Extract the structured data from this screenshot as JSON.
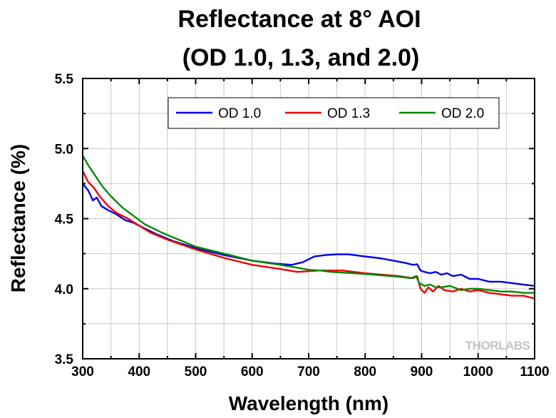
{
  "chart_data": {
    "type": "line",
    "title_line1": "Reflectance at  8° AOI",
    "title_line2": "(OD 1.0, 1.3, and 2.0)",
    "xlabel": "Wavelength (nm)",
    "ylabel": "Reflectance (%)",
    "xlim": [
      300,
      1100
    ],
    "ylim": [
      3.5,
      5.5
    ],
    "x_ticks": [
      300,
      400,
      500,
      600,
      700,
      800,
      900,
      1000,
      1100
    ],
    "y_ticks": [
      "3.5",
      "4.0",
      "4.5",
      "5.0",
      "5.5"
    ],
    "grid": true,
    "legend_position": "top-right",
    "watermark": "THORLABS",
    "series": [
      {
        "name": "OD 1.0",
        "color": "#0000ee",
        "points": [
          [
            300,
            4.75
          ],
          [
            310,
            4.7
          ],
          [
            318,
            4.63
          ],
          [
            325,
            4.65
          ],
          [
            333,
            4.59
          ],
          [
            345,
            4.56
          ],
          [
            360,
            4.53
          ],
          [
            375,
            4.49
          ],
          [
            390,
            4.47
          ],
          [
            410,
            4.43
          ],
          [
            430,
            4.39
          ],
          [
            460,
            4.34
          ],
          [
            500,
            4.29
          ],
          [
            550,
            4.24
          ],
          [
            600,
            4.2
          ],
          [
            640,
            4.18
          ],
          [
            670,
            4.17
          ],
          [
            690,
            4.19
          ],
          [
            710,
            4.23
          ],
          [
            730,
            4.24
          ],
          [
            750,
            4.245
          ],
          [
            770,
            4.245
          ],
          [
            790,
            4.235
          ],
          [
            810,
            4.225
          ],
          [
            830,
            4.215
          ],
          [
            850,
            4.2
          ],
          [
            870,
            4.185
          ],
          [
            885,
            4.17
          ],
          [
            892,
            4.175
          ],
          [
            898,
            4.13
          ],
          [
            905,
            4.12
          ],
          [
            915,
            4.11
          ],
          [
            925,
            4.12
          ],
          [
            935,
            4.1
          ],
          [
            945,
            4.11
          ],
          [
            955,
            4.09
          ],
          [
            970,
            4.1
          ],
          [
            985,
            4.07
          ],
          [
            1000,
            4.07
          ],
          [
            1020,
            4.05
          ],
          [
            1040,
            4.05
          ],
          [
            1060,
            4.04
          ],
          [
            1080,
            4.03
          ],
          [
            1100,
            4.02
          ]
        ]
      },
      {
        "name": "OD 1.3",
        "color": "#ee0000",
        "points": [
          [
            300,
            4.84
          ],
          [
            310,
            4.76
          ],
          [
            320,
            4.72
          ],
          [
            330,
            4.66
          ],
          [
            345,
            4.59
          ],
          [
            360,
            4.54
          ],
          [
            380,
            4.5
          ],
          [
            400,
            4.45
          ],
          [
            420,
            4.4
          ],
          [
            450,
            4.35
          ],
          [
            500,
            4.28
          ],
          [
            550,
            4.22
          ],
          [
            600,
            4.17
          ],
          [
            650,
            4.14
          ],
          [
            680,
            4.12
          ],
          [
            700,
            4.125
          ],
          [
            720,
            4.13
          ],
          [
            740,
            4.13
          ],
          [
            760,
            4.13
          ],
          [
            780,
            4.12
          ],
          [
            800,
            4.11
          ],
          [
            830,
            4.1
          ],
          [
            860,
            4.09
          ],
          [
            885,
            4.075
          ],
          [
            892,
            4.09
          ],
          [
            898,
            4.0
          ],
          [
            905,
            3.97
          ],
          [
            912,
            4.01
          ],
          [
            920,
            3.98
          ],
          [
            930,
            4.02
          ],
          [
            940,
            3.99
          ],
          [
            955,
            3.98
          ],
          [
            970,
            4.0
          ],
          [
            985,
            3.98
          ],
          [
            1000,
            3.99
          ],
          [
            1020,
            3.97
          ],
          [
            1040,
            3.96
          ],
          [
            1060,
            3.95
          ],
          [
            1080,
            3.95
          ],
          [
            1100,
            3.93
          ]
        ]
      },
      {
        "name": "OD 2.0",
        "color": "#008800",
        "points": [
          [
            300,
            4.95
          ],
          [
            310,
            4.88
          ],
          [
            320,
            4.82
          ],
          [
            335,
            4.73
          ],
          [
            350,
            4.66
          ],
          [
            370,
            4.58
          ],
          [
            390,
            4.52
          ],
          [
            410,
            4.46
          ],
          [
            440,
            4.4
          ],
          [
            470,
            4.35
          ],
          [
            500,
            4.3
          ],
          [
            550,
            4.25
          ],
          [
            600,
            4.2
          ],
          [
            650,
            4.17
          ],
          [
            680,
            4.15
          ],
          [
            700,
            4.135
          ],
          [
            720,
            4.13
          ],
          [
            740,
            4.12
          ],
          [
            760,
            4.115
          ],
          [
            780,
            4.11
          ],
          [
            800,
            4.105
          ],
          [
            830,
            4.095
          ],
          [
            860,
            4.085
          ],
          [
            882,
            4.075
          ],
          [
            890,
            4.09
          ],
          [
            896,
            4.04
          ],
          [
            905,
            4.02
          ],
          [
            915,
            4.03
          ],
          [
            925,
            4.01
          ],
          [
            935,
            4.01
          ],
          [
            950,
            4.02
          ],
          [
            970,
            3.99
          ],
          [
            985,
            4.0
          ],
          [
            1000,
            4.0
          ],
          [
            1020,
            3.99
          ],
          [
            1040,
            3.98
          ],
          [
            1060,
            3.98
          ],
          [
            1080,
            3.97
          ],
          [
            1100,
            3.97
          ]
        ]
      }
    ]
  }
}
